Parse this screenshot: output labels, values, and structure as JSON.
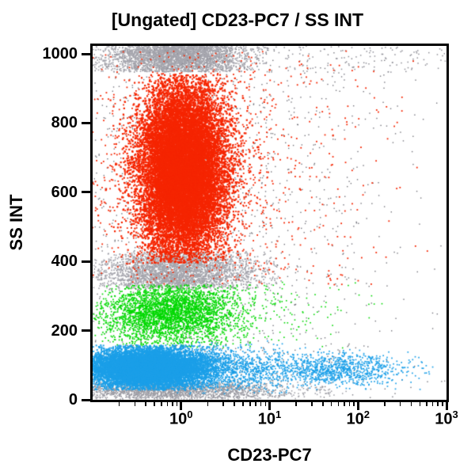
{
  "chart": {
    "title": "[Ungated] CD23-PC7 / SS INT",
    "xlabel": "CD23-PC7",
    "ylabel": "SS INT"
  },
  "colors": {
    "frame": "#000000",
    "background": "#FFFFFF",
    "text": "#000000",
    "red_population": "#F52500",
    "green_population": "#00D800",
    "blue_population": "#1B9FE8",
    "gray_dense": "#A4A4AC",
    "gray_scatter": "#74747C",
    "gray_debris": "#9A9AA2"
  },
  "chart_data": {
    "type": "scatter",
    "subtype": "flow-cytometry-dot-plot",
    "title": "[Ungated] CD23-PC7 / SS INT",
    "xlabel": "CD23-PC7",
    "ylabel": "SS INT",
    "x_scale": "log10",
    "x_units": "log10_of_value",
    "x_range_log10": [
      -1,
      3
    ],
    "y_range": [
      0,
      1023
    ],
    "grid": false,
    "legend": "none",
    "x_major_ticks": [
      {
        "log10": 0,
        "base": "10",
        "exp": "0"
      },
      {
        "log10": 1,
        "base": "10",
        "exp": "1"
      },
      {
        "log10": 2,
        "base": "10",
        "exp": "2"
      },
      {
        "log10": 3,
        "base": "10",
        "exp": "3"
      }
    ],
    "y_major_ticks": [
      {
        "value": 1000,
        "label": "1000"
      },
      {
        "value": 800,
        "label": "800"
      },
      {
        "value": 600,
        "label": "600"
      },
      {
        "value": 400,
        "label": "400"
      },
      {
        "value": 200,
        "label": "200"
      },
      {
        "value": 0,
        "label": "0"
      }
    ],
    "populations": [
      {
        "name": "background-scatter-gray",
        "color": "#74747C",
        "n": 1600,
        "size": 1.4,
        "x": {
          "dist": "normal",
          "mean": 0.2,
          "sd": 1.1,
          "clip": [
            -1,
            3
          ]
        },
        "y": {
          "dist": "uniform",
          "min": 5,
          "max": 1023
        }
      },
      {
        "name": "saturated-top-band-gray",
        "color": "#A4A4AC",
        "n": 2800,
        "size": 1.7,
        "x": {
          "dist": "normal",
          "mean": -0.05,
          "sd": 0.4,
          "clip": [
            -1,
            1.0
          ]
        },
        "y": {
          "dist": "normal",
          "mean": 1005,
          "sd": 45,
          "clip": [
            948,
            1023
          ]
        }
      },
      {
        "name": "top-right-scatter-gray",
        "color": "#8E8E96",
        "n": 240,
        "size": 1.5,
        "x": {
          "dist": "uniform",
          "min": -1,
          "max": 3
        },
        "y": {
          "dist": "uniform",
          "min": 945,
          "max": 1023
        }
      },
      {
        "name": "mid-band-gray",
        "color": "#A4A4AC",
        "n": 2800,
        "size": 1.7,
        "x": {
          "dist": "normal",
          "mean": -0.05,
          "sd": 0.45,
          "clip": [
            -1,
            1.1
          ]
        },
        "y": {
          "dist": "normal",
          "mean": 368,
          "sd": 42,
          "clip": [
            322,
            428
          ]
        }
      },
      {
        "name": "debris-bottom-gray",
        "color": "#9A9AA2",
        "n": 2000,
        "size": 1.5,
        "x": {
          "dist": "normal",
          "mean": -0.1,
          "sd": 0.7,
          "clip": [
            -1,
            2.3
          ]
        },
        "y": {
          "dist": "normal",
          "mean": 26,
          "sd": 15,
          "clip": [
            2,
            55
          ]
        }
      },
      {
        "name": "granulocytes-red-halo",
        "color": "#F52500",
        "n": 1500,
        "size": 1.8,
        "x": {
          "dist": "normal",
          "mean": 0.02,
          "sd": 0.55,
          "clip": [
            -1,
            2.0
          ]
        },
        "y": {
          "dist": "normal",
          "mean": 650,
          "sd": 210,
          "clip": [
            335,
            1010
          ]
        }
      },
      {
        "name": "red-right-scatter",
        "color": "#F52500",
        "n": 200,
        "size": 1.8,
        "x": {
          "dist": "normal",
          "mean": 1.2,
          "sd": 0.8,
          "clip": [
            0.6,
            2.9
          ]
        },
        "y": {
          "dist": "uniform",
          "min": 330,
          "max": 1010
        }
      },
      {
        "name": "granulocytes-red-core",
        "color": "#F52500",
        "n": 16000,
        "size": 2.2,
        "x": {
          "dist": "normal",
          "mean": 0.02,
          "sd": 0.24,
          "clip": [
            -1,
            1.15
          ]
        },
        "y": {
          "dist": "normal",
          "mean": 665,
          "sd": 125,
          "clip": [
            395,
            940
          ]
        }
      },
      {
        "name": "green-right-scatter",
        "color": "#00D800",
        "n": 140,
        "size": 1.6,
        "x": {
          "dist": "normal",
          "mean": 0.9,
          "sd": 0.6,
          "clip": [
            0.3,
            2.4
          ]
        },
        "y": {
          "dist": "normal",
          "mean": 255,
          "sd": 60,
          "clip": [
            140,
            340
          ]
        }
      },
      {
        "name": "monocytes-green",
        "color": "#00D800",
        "n": 3200,
        "size": 1.7,
        "x": {
          "dist": "normal",
          "mean": -0.12,
          "sd": 0.38,
          "clip": [
            -1,
            1.4
          ]
        },
        "y": {
          "dist": "normal",
          "mean": 250,
          "sd": 46,
          "clip": [
            152,
            332
          ]
        }
      },
      {
        "name": "blue-mid-scatter",
        "color": "#1B9FE8",
        "n": 1200,
        "size": 1.7,
        "x": {
          "dist": "normal",
          "mean": 0.5,
          "sd": 0.45,
          "clip": [
            -0.2,
            1.6
          ]
        },
        "y": {
          "dist": "normal",
          "mean": 92,
          "sd": 32,
          "clip": [
            15,
            170
          ]
        }
      },
      {
        "name": "cd23-positive-blue-right",
        "color": "#1B9FE8",
        "n": 950,
        "size": 1.7,
        "x": {
          "dist": "normal",
          "mean": 1.75,
          "sd": 0.4,
          "clip": [
            0.9,
            2.85
          ]
        },
        "y": {
          "dist": "normal",
          "mean": 85,
          "sd": 24,
          "clip": [
            30,
            150
          ]
        }
      },
      {
        "name": "lymphocytes-blue-core",
        "color": "#1B9FE8",
        "n": 10000,
        "size": 2.0,
        "x": {
          "dist": "normal",
          "mean": -0.38,
          "sd": 0.33,
          "clip": [
            -1,
            0.85
          ]
        },
        "y": {
          "dist": "normal",
          "mean": 92,
          "sd": 29,
          "clip": [
            28,
            158
          ]
        }
      }
    ]
  }
}
